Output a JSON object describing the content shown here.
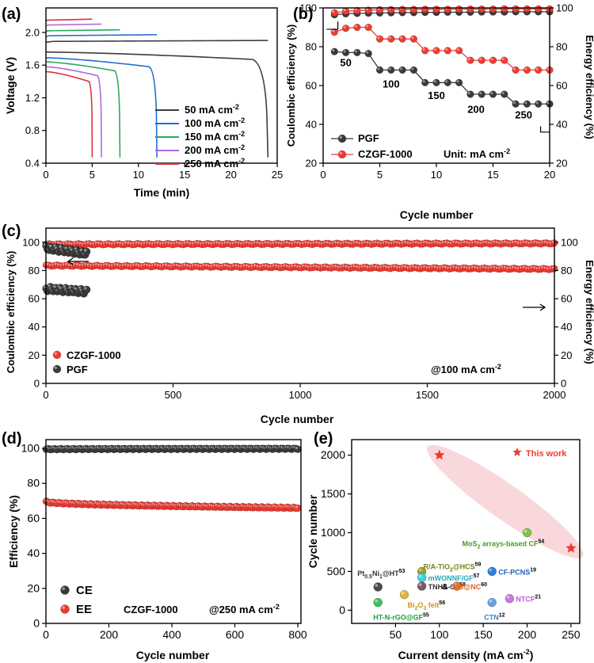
{
  "colors": {
    "c50": "#3d3d3d",
    "c100": "#1f6fd1",
    "c150": "#2ca85a",
    "c200": "#b06ad6",
    "c250": "#e0303a",
    "pgf": "#3a3a3a",
    "czgf": "#ef3b32",
    "accent": "#f4b8c0"
  },
  "panels": {
    "a": {
      "label": "(a)",
      "chart_data": {
        "type": "line",
        "xlabel": "Time (min)",
        "ylabel": "Voltage (V)",
        "xlim": [
          0,
          25
        ],
        "ylim": [
          0.4,
          2.3
        ],
        "xticks": [
          0,
          5,
          10,
          15,
          20,
          25
        ],
        "yticks": [
          0.4,
          0.8,
          1.2,
          1.6,
          2.0
        ],
        "series": [
          {
            "name": "50 mA cm",
            "sup": "-2",
            "color_key": "c50",
            "charge_v": 1.89,
            "charge_end": 24,
            "discharge_start_v": 1.76,
            "discharge_end": 24,
            "plateau_end_v": 1.67
          },
          {
            "name": "100 mA cm",
            "sup": "-2",
            "color_key": "c100",
            "charge_v": 1.96,
            "charge_end": 12,
            "discharge_start_v": 1.69,
            "discharge_end": 12,
            "plateau_end_v": 1.58
          },
          {
            "name": "150 mA cm",
            "sup": "-2",
            "color_key": "c150",
            "charge_v": 2.02,
            "charge_end": 8,
            "discharge_start_v": 1.64,
            "discharge_end": 8,
            "plateau_end_v": 1.53
          },
          {
            "name": "200 mA cm",
            "sup": "-2",
            "color_key": "c200",
            "charge_v": 2.09,
            "charge_end": 6,
            "discharge_start_v": 1.58,
            "discharge_end": 6,
            "plateau_end_v": 1.47
          },
          {
            "name": "250 mA cm",
            "sup": "-2",
            "color_key": "c250",
            "charge_v": 2.15,
            "charge_end": 5,
            "discharge_start_v": 1.52,
            "discharge_end": 5,
            "plateau_end_v": 1.4
          }
        ]
      }
    },
    "b": {
      "label": "(b)",
      "chart_data": {
        "type": "scatter",
        "xlabel": "Cycle number",
        "ylabel": "Coulombic efficiency (%)",
        "ylabel_right": "Energy efficiency (%)",
        "xlim": [
          0,
          20
        ],
        "ylim": [
          20,
          100
        ],
        "xticks": [
          0,
          5,
          10,
          15,
          20
        ],
        "yticks": [
          20,
          40,
          60,
          80,
          100
        ],
        "unit_note": "Unit: mA cm",
        "unit_sup": "-2",
        "rate_labels": [
          {
            "text": "50",
            "x": 2,
            "y": 70
          },
          {
            "text": "100",
            "x": 6,
            "y": 59
          },
          {
            "text": "150",
            "x": 10,
            "y": 53
          },
          {
            "text": "200",
            "x": 13.5,
            "y": 46
          },
          {
            "text": "250",
            "x": 17.7,
            "y": 43
          }
        ],
        "series": [
          {
            "name": "PGF",
            "axis": "left",
            "color_key": "pgf",
            "x": [
              1,
              2,
              3,
              4,
              5,
              6,
              7,
              8,
              9,
              10,
              11,
              12,
              13,
              14,
              15,
              16,
              17,
              18,
              19,
              20
            ],
            "values": [
              96.5,
              97,
              97.2,
              97.3,
              97.4,
              97.5,
              97.6,
              97.6,
              97.7,
              97.7,
              97.8,
              97.8,
              97.8,
              97.9,
              97.9,
              97.9,
              98,
              98,
              98,
              98
            ]
          },
          {
            "name": "CZGF-1000",
            "axis": "left",
            "color_key": "czgf",
            "x": [
              1,
              2,
              3,
              4,
              5,
              6,
              7,
              8,
              9,
              10,
              11,
              12,
              13,
              14,
              15,
              16,
              17,
              18,
              19,
              20
            ],
            "values": [
              97.5,
              98.3,
              98.6,
              98.8,
              99,
              99.1,
              99.2,
              99.2,
              99.3,
              99.3,
              99.3,
              99.4,
              99.4,
              99.4,
              99.4,
              99.5,
              99.5,
              99.5,
              99.5,
              99.5
            ]
          },
          {
            "name": "PGF EE",
            "axis": "right",
            "color_key": "pgf",
            "x": [
              1,
              2,
              3,
              4,
              5,
              6,
              7,
              8,
              9,
              10,
              11,
              12,
              13,
              14,
              15,
              16,
              17,
              18,
              19,
              20
            ],
            "values": [
              77.5,
              77,
              77,
              76.5,
              68,
              68,
              68,
              68,
              61.5,
              61.5,
              61.5,
              61.5,
              55.5,
              55.5,
              55.5,
              55.5,
              50.5,
              50.5,
              50.5,
              50.5
            ]
          },
          {
            "name": "CZGF-1000 EE",
            "axis": "right",
            "color_key": "czgf",
            "x": [
              1,
              2,
              3,
              4,
              5,
              6,
              7,
              8,
              9,
              10,
              11,
              12,
              13,
              14,
              15,
              16,
              17,
              18,
              19,
              20
            ],
            "values": [
              87.5,
              89.5,
              90,
              90,
              84,
              84,
              84,
              84,
              78,
              78,
              78,
              78,
              73,
              73,
              73,
              73,
              68,
              68,
              68,
              68
            ]
          }
        ]
      }
    },
    "c": {
      "label": "(c)",
      "chart_data": {
        "type": "scatter",
        "xlabel": "Cycle number",
        "ylabel": "Coulombic efficiency (%)",
        "ylabel_right": "Energy efficiency (%)",
        "xlim": [
          0,
          2000
        ],
        "ylim": [
          0,
          110
        ],
        "xticks": [
          0,
          500,
          1000,
          1500,
          2000
        ],
        "yticks": [
          0,
          20,
          40,
          60,
          80,
          100
        ],
        "note": "@100 mA cm",
        "note_sup": "-2",
        "legend": [
          "CZGF-1000",
          "PGF"
        ],
        "series": [
          {
            "name": "CZGF-1000 CE",
            "color_key": "czgf",
            "x_range": [
              1,
              2000
            ],
            "level": [
              98.5,
              99.2
            ]
          },
          {
            "name": "CZGF-1000 EE",
            "color_key": "czgf",
            "x_range": [
              1,
              2000
            ],
            "level": [
              83.5,
              81
            ]
          },
          {
            "name": "PGF CE",
            "color_key": "pgf",
            "x_range": [
              1,
              160
            ],
            "level": [
              96,
              92
            ]
          },
          {
            "name": "PGF EE",
            "color_key": "pgf",
            "x_range": [
              1,
              160
            ],
            "level": [
              67,
              65
            ]
          }
        ]
      }
    },
    "d": {
      "label": "(d)",
      "chart_data": {
        "type": "scatter",
        "xlabel": "Cycle number",
        "ylabel": "Efficiency (%)",
        "xlim": [
          0,
          810
        ],
        "ylim": [
          0,
          105
        ],
        "xticks": [
          0,
          200,
          400,
          600,
          800
        ],
        "yticks": [
          0,
          20,
          40,
          60,
          80,
          100
        ],
        "legend": [
          "CE",
          "EE"
        ],
        "note": "CZGF-1000",
        "note2": "@250 mA cm",
        "note2_sup": "-2",
        "series": [
          {
            "name": "CE",
            "color_key": "pgf",
            "x_range": [
              1,
              800
            ],
            "level": [
              99.5,
              99.8
            ]
          },
          {
            "name": "EE",
            "color_key": "czgf",
            "x_range": [
              1,
              800
            ],
            "level": [
              69.5,
              66
            ]
          }
        ]
      }
    },
    "e": {
      "label": "(e)",
      "chart_data": {
        "type": "scatter",
        "xlabel": "Current density (mA cm",
        "xlabel_sup": "-2",
        "xlabel_end": ")",
        "ylabel": "Cycle number",
        "xlim": [
          0,
          260
        ],
        "ylim": [
          -170,
          2200
        ],
        "xticks": [
          50,
          100,
          150,
          200,
          250
        ],
        "yticks": [
          0,
          500,
          1000,
          1500,
          2000
        ],
        "this_work_label": "This work",
        "this_work": [
          {
            "x": 100,
            "y": 2000
          },
          {
            "x": 250,
            "y": 800
          }
        ],
        "points": [
          {
            "label": "MoS",
            "sub": "2",
            "rest": " arrays-based CF",
            "ref": "54",
            "x": 200,
            "y": 1000,
            "color": "#7fc441",
            "label_color": "#4a9a1c",
            "dx": -82,
            "dy": 17
          },
          {
            "label": "R/A-TiO",
            "sub": "2",
            "rest": "@HCS",
            "ref": "59",
            "x": 80,
            "y": 500,
            "color": "#9aa12a",
            "label_color": "#7a7d18",
            "dx": 2,
            "dy": -3
          },
          {
            "label": "mWONNF/GF",
            "sub": "",
            "rest": "",
            "ref": "57",
            "x": 80,
            "y": 420,
            "color": "#3ecfe0",
            "label_color": "#22a7b8",
            "dx": 8,
            "dy": 4
          },
          {
            "label": "TNHS-CF",
            "sub": "",
            "rest": "",
            "ref": "58",
            "x": 80,
            "y": 310,
            "color": "#7d5a60",
            "label_color": "#333333",
            "dx": 8,
            "dy": 4
          },
          {
            "label": "PB@NC",
            "sub": "",
            "rest": "",
            "ref": "60",
            "x": 120,
            "y": 310,
            "color": "#e07a2c",
            "label_color": "#e0621f",
            "dx": -4,
            "dy": 4
          },
          {
            "label": "CF-PCNS",
            "sub": "",
            "rest": "",
            "ref": "19",
            "x": 160,
            "y": 500,
            "color": "#2f7fd8",
            "label_color": "#1f5fb8",
            "dx": 8,
            "dy": 4
          },
          {
            "label": "Pt",
            "sub": "0.5",
            "rest": "Ni",
            "sub2": "1",
            "rest2": "@HT",
            "ref": "53",
            "x": 30,
            "y": 300,
            "color": "#4a4a4a",
            "label_color": "#333333",
            "dx": -26,
            "dy": -14
          },
          {
            "label": "Bi",
            "sub": "2",
            "rest": "O",
            "sub2": "3",
            "rest2": " felt",
            "ref": "56",
            "x": 60,
            "y": 200,
            "color": "#e3b43a",
            "label_color": "#c9941e",
            "dx": 4,
            "dy": 16
          },
          {
            "label": "NTCF",
            "sub": "",
            "rest": "",
            "ref": "21",
            "x": 180,
            "y": 150,
            "color": "#c878e0",
            "label_color": "#b85ad2",
            "dx": 8,
            "dy": 4
          },
          {
            "label": "CTN",
            "sub": "",
            "rest": "",
            "ref": "12",
            "x": 160,
            "y": 100,
            "color": "#6aa0e0",
            "label_color": "#3a7fd0",
            "dx": -10,
            "dy": 22
          },
          {
            "label": "HT-N-rGO@GF",
            "sub": "",
            "rest": "",
            "ref": "55",
            "x": 30,
            "y": 100,
            "color": "#3cc060",
            "label_color": "#1e9c40",
            "dx": -6,
            "dy": 22
          }
        ]
      }
    }
  }
}
